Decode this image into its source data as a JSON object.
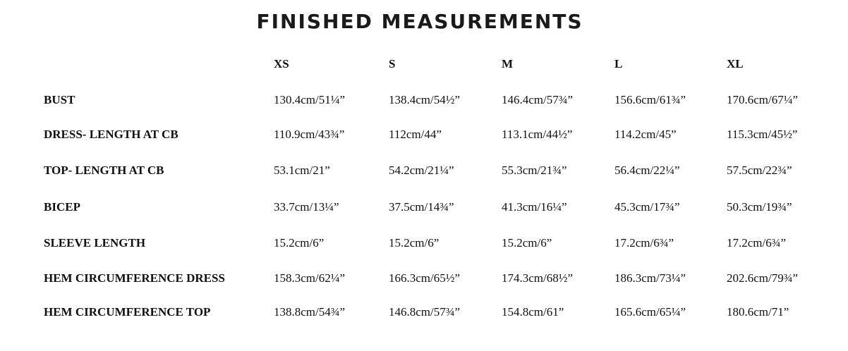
{
  "title": "FINISHED MEASUREMENTS",
  "sizes": [
    "XS",
    "S",
    "M",
    "L",
    "XL"
  ],
  "rows": [
    {
      "label": "BUST",
      "values": [
        "130.4cm/51¼”",
        "138.4cm/54½”",
        "146.4cm/57¾”",
        "156.6cm/61¾”",
        "170.6cm/67¼”"
      ]
    },
    {
      "label": "DRESS- LENGTH AT CB",
      "values": [
        "110.9cm/43¾”",
        "112cm/44”",
        "113.1cm/44½”",
        "114.2cm/45”",
        "115.3cm/45½”"
      ]
    },
    {
      "label": "TOP- LENGTH AT CB",
      "values": [
        "53.1cm/21”",
        "54.2cm/21¼”",
        "55.3cm/21¾”",
        "56.4cm/22¼”",
        "57.5cm/22¾”"
      ]
    },
    {
      "label": "BICEP",
      "values": [
        "33.7cm/13¼”",
        "37.5cm/14¾”",
        "41.3cm/16¼”",
        "45.3cm/17¾”",
        "50.3cm/19¾”"
      ]
    },
    {
      "label": "SLEEVE LENGTH",
      "values": [
        "15.2cm/6”",
        "15.2cm/6”",
        "15.2cm/6”",
        "17.2cm/6¾”",
        "17.2cm/6¾”"
      ]
    },
    {
      "label": "HEM CIRCUMFERENCE DRESS",
      "values": [
        "158.3cm/62¼”",
        "166.3cm/65½”",
        "174.3cm/68½”",
        "186.3cm/73¼”",
        "202.6cm/79¾”"
      ]
    },
    {
      "label": "HEM CIRCUMFERENCE TOP",
      "values": [
        "138.8cm/54¾”",
        "146.8cm/57¾”",
        "154.8cm/61”",
        "165.6cm/65¼”",
        "180.6cm/71”"
      ]
    }
  ]
}
